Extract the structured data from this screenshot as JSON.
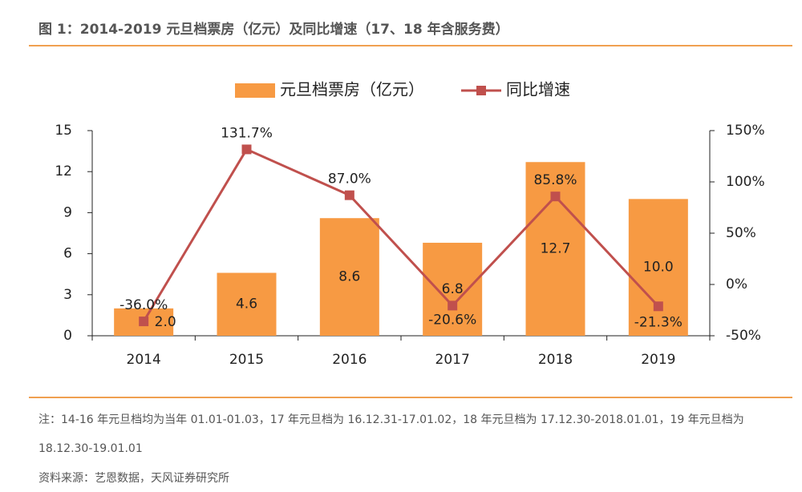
{
  "header": {
    "title": "图 1：2014-2019 元旦档票房（亿元）及同比增速（17、18 年含服务费）"
  },
  "chart_data": {
    "type": "bar",
    "categories": [
      "2014",
      "2015",
      "2016",
      "2017",
      "2018",
      "2019"
    ],
    "series": [
      {
        "name": "元旦档票房（亿元）",
        "type": "bar",
        "color": "#f79a43",
        "values": [
          2.0,
          4.6,
          8.6,
          6.8,
          12.7,
          10.0
        ],
        "value_labels": [
          "2.0",
          "4.6",
          "8.6",
          "6.8",
          "12.7",
          "10.0"
        ]
      },
      {
        "name": "同比增速",
        "type": "line",
        "axis": "y2",
        "color": "#c0504d",
        "values": [
          -36.0,
          131.7,
          87.0,
          -20.6,
          85.8,
          -21.3
        ],
        "value_labels": [
          "-36.0%",
          "131.7%",
          "87.0%",
          "-20.6%",
          "85.8%",
          "-21.3%"
        ]
      }
    ],
    "ylim": [
      0,
      15
    ],
    "yticks": [
      0,
      3,
      6,
      9,
      12,
      15
    ],
    "y2lim": [
      -50,
      150
    ],
    "y2ticks": [
      {
        "value": -50,
        "label": "-50%"
      },
      {
        "value": 0,
        "label": "0%"
      },
      {
        "value": 50,
        "label": "50%"
      },
      {
        "value": 100,
        "label": "100%"
      },
      {
        "value": 150,
        "label": "150%"
      }
    ],
    "legend": "top"
  },
  "footer": {
    "note": "注：14-16 年元旦档均为当年 01.01-01.03，17 年元旦档为 16.12.31-17.01.02，18 年元旦档为 17.12.30-2018.01.01，19 年元旦档为 18.12.30-19.01.01",
    "source": "资料来源：艺恩数据，天风证券研究所"
  }
}
